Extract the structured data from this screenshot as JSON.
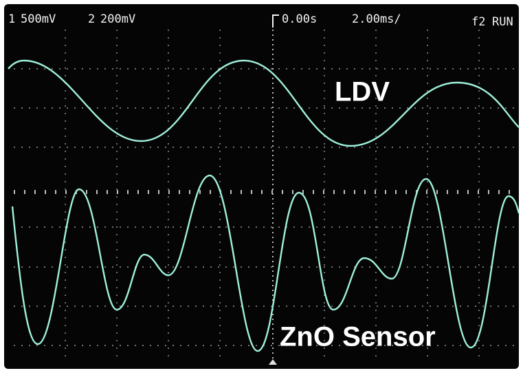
{
  "header": {
    "channel_1": {
      "id": "1",
      "scale": "500mV"
    },
    "channel_2": {
      "id": "2",
      "scale": "200mV"
    },
    "time_offset": "0.00s",
    "time_base": "2.00ms/",
    "trigger": "f2",
    "state": "RUN"
  },
  "labels": {
    "ldv": "LDV",
    "zno": "ZnO Sensor"
  }
}
